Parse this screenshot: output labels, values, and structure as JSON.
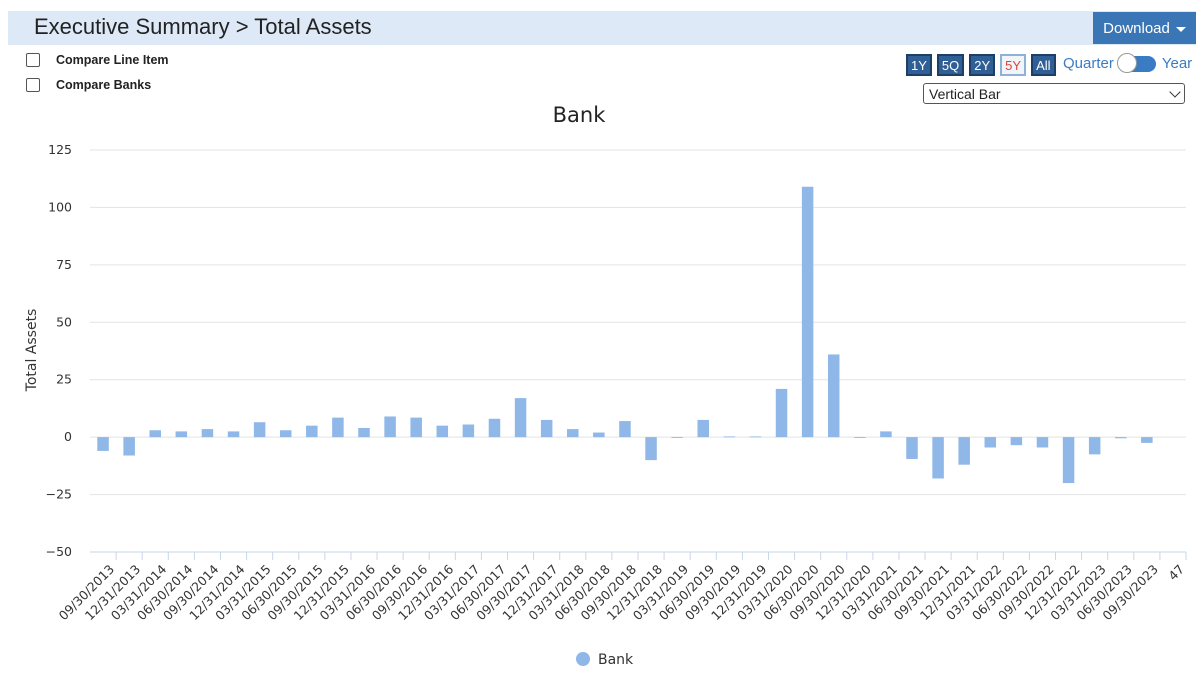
{
  "header": {
    "title": "Executive Summary > Total Assets",
    "download_label": "Download"
  },
  "options": {
    "compare_line_item": "Compare Line Item",
    "compare_banks": "Compare Banks"
  },
  "range_buttons": [
    {
      "label": "1Y",
      "active": false
    },
    {
      "label": "5Q",
      "active": false
    },
    {
      "label": "2Y",
      "active": false
    },
    {
      "label": "5Y",
      "active": true
    },
    {
      "label": "All",
      "active": false
    }
  ],
  "period_toggle": {
    "left_label": "Quarter",
    "right_label": "Year",
    "selected": "Quarter"
  },
  "chart_type_select": {
    "value": "Vertical Bar"
  },
  "colors": {
    "bar": "#8fb7e8",
    "accent": "#3a75b5"
  },
  "chart_data": {
    "type": "bar",
    "title": "Bank",
    "xlabel": "",
    "ylabel": "Total Assets",
    "ylim": [
      -50,
      125
    ],
    "yticks": [
      125,
      100,
      75,
      50,
      25,
      0,
      -25,
      -50
    ],
    "ytick_labels": [
      "125",
      "100",
      "75",
      "50",
      "25",
      "0",
      "−25",
      "−50"
    ],
    "grid": true,
    "legend": "bottom",
    "categories": [
      "09/30/2013",
      "12/31/2013",
      "03/31/2014",
      "06/30/2014",
      "09/30/2014",
      "12/31/2014",
      "03/31/2015",
      "06/30/2015",
      "09/30/2015",
      "12/31/2015",
      "03/31/2016",
      "06/30/2016",
      "09/30/2016",
      "12/31/2016",
      "03/31/2017",
      "06/30/2017",
      "09/30/2017",
      "12/31/2017",
      "03/31/2018",
      "06/30/2018",
      "09/30/2018",
      "12/31/2018",
      "03/31/2019",
      "06/30/2019",
      "09/30/2019",
      "12/31/2019",
      "03/31/2020",
      "06/30/2020",
      "09/30/2020",
      "12/31/2020",
      "03/31/2021",
      "06/30/2021",
      "09/30/2021",
      "12/31/2021",
      "03/31/2022",
      "06/30/2022",
      "09/30/2022",
      "12/31/2022",
      "03/31/2023",
      "06/30/2023",
      "09/30/2023",
      "47"
    ],
    "series": [
      {
        "name": "Bank",
        "values": [
          -6,
          -8,
          3,
          2.5,
          3.5,
          2.5,
          6.5,
          3,
          5,
          8.5,
          4,
          9,
          8.5,
          5,
          5.5,
          8,
          17,
          7.5,
          3.5,
          2,
          7,
          -10,
          0,
          7.5,
          0.3,
          0.3,
          21,
          109,
          36,
          0,
          2.5,
          -9.5,
          -18,
          -12,
          -4.5,
          -3.5,
          -4.5,
          -20,
          -7.5,
          -0.5,
          -2.5,
          null
        ]
      }
    ]
  }
}
